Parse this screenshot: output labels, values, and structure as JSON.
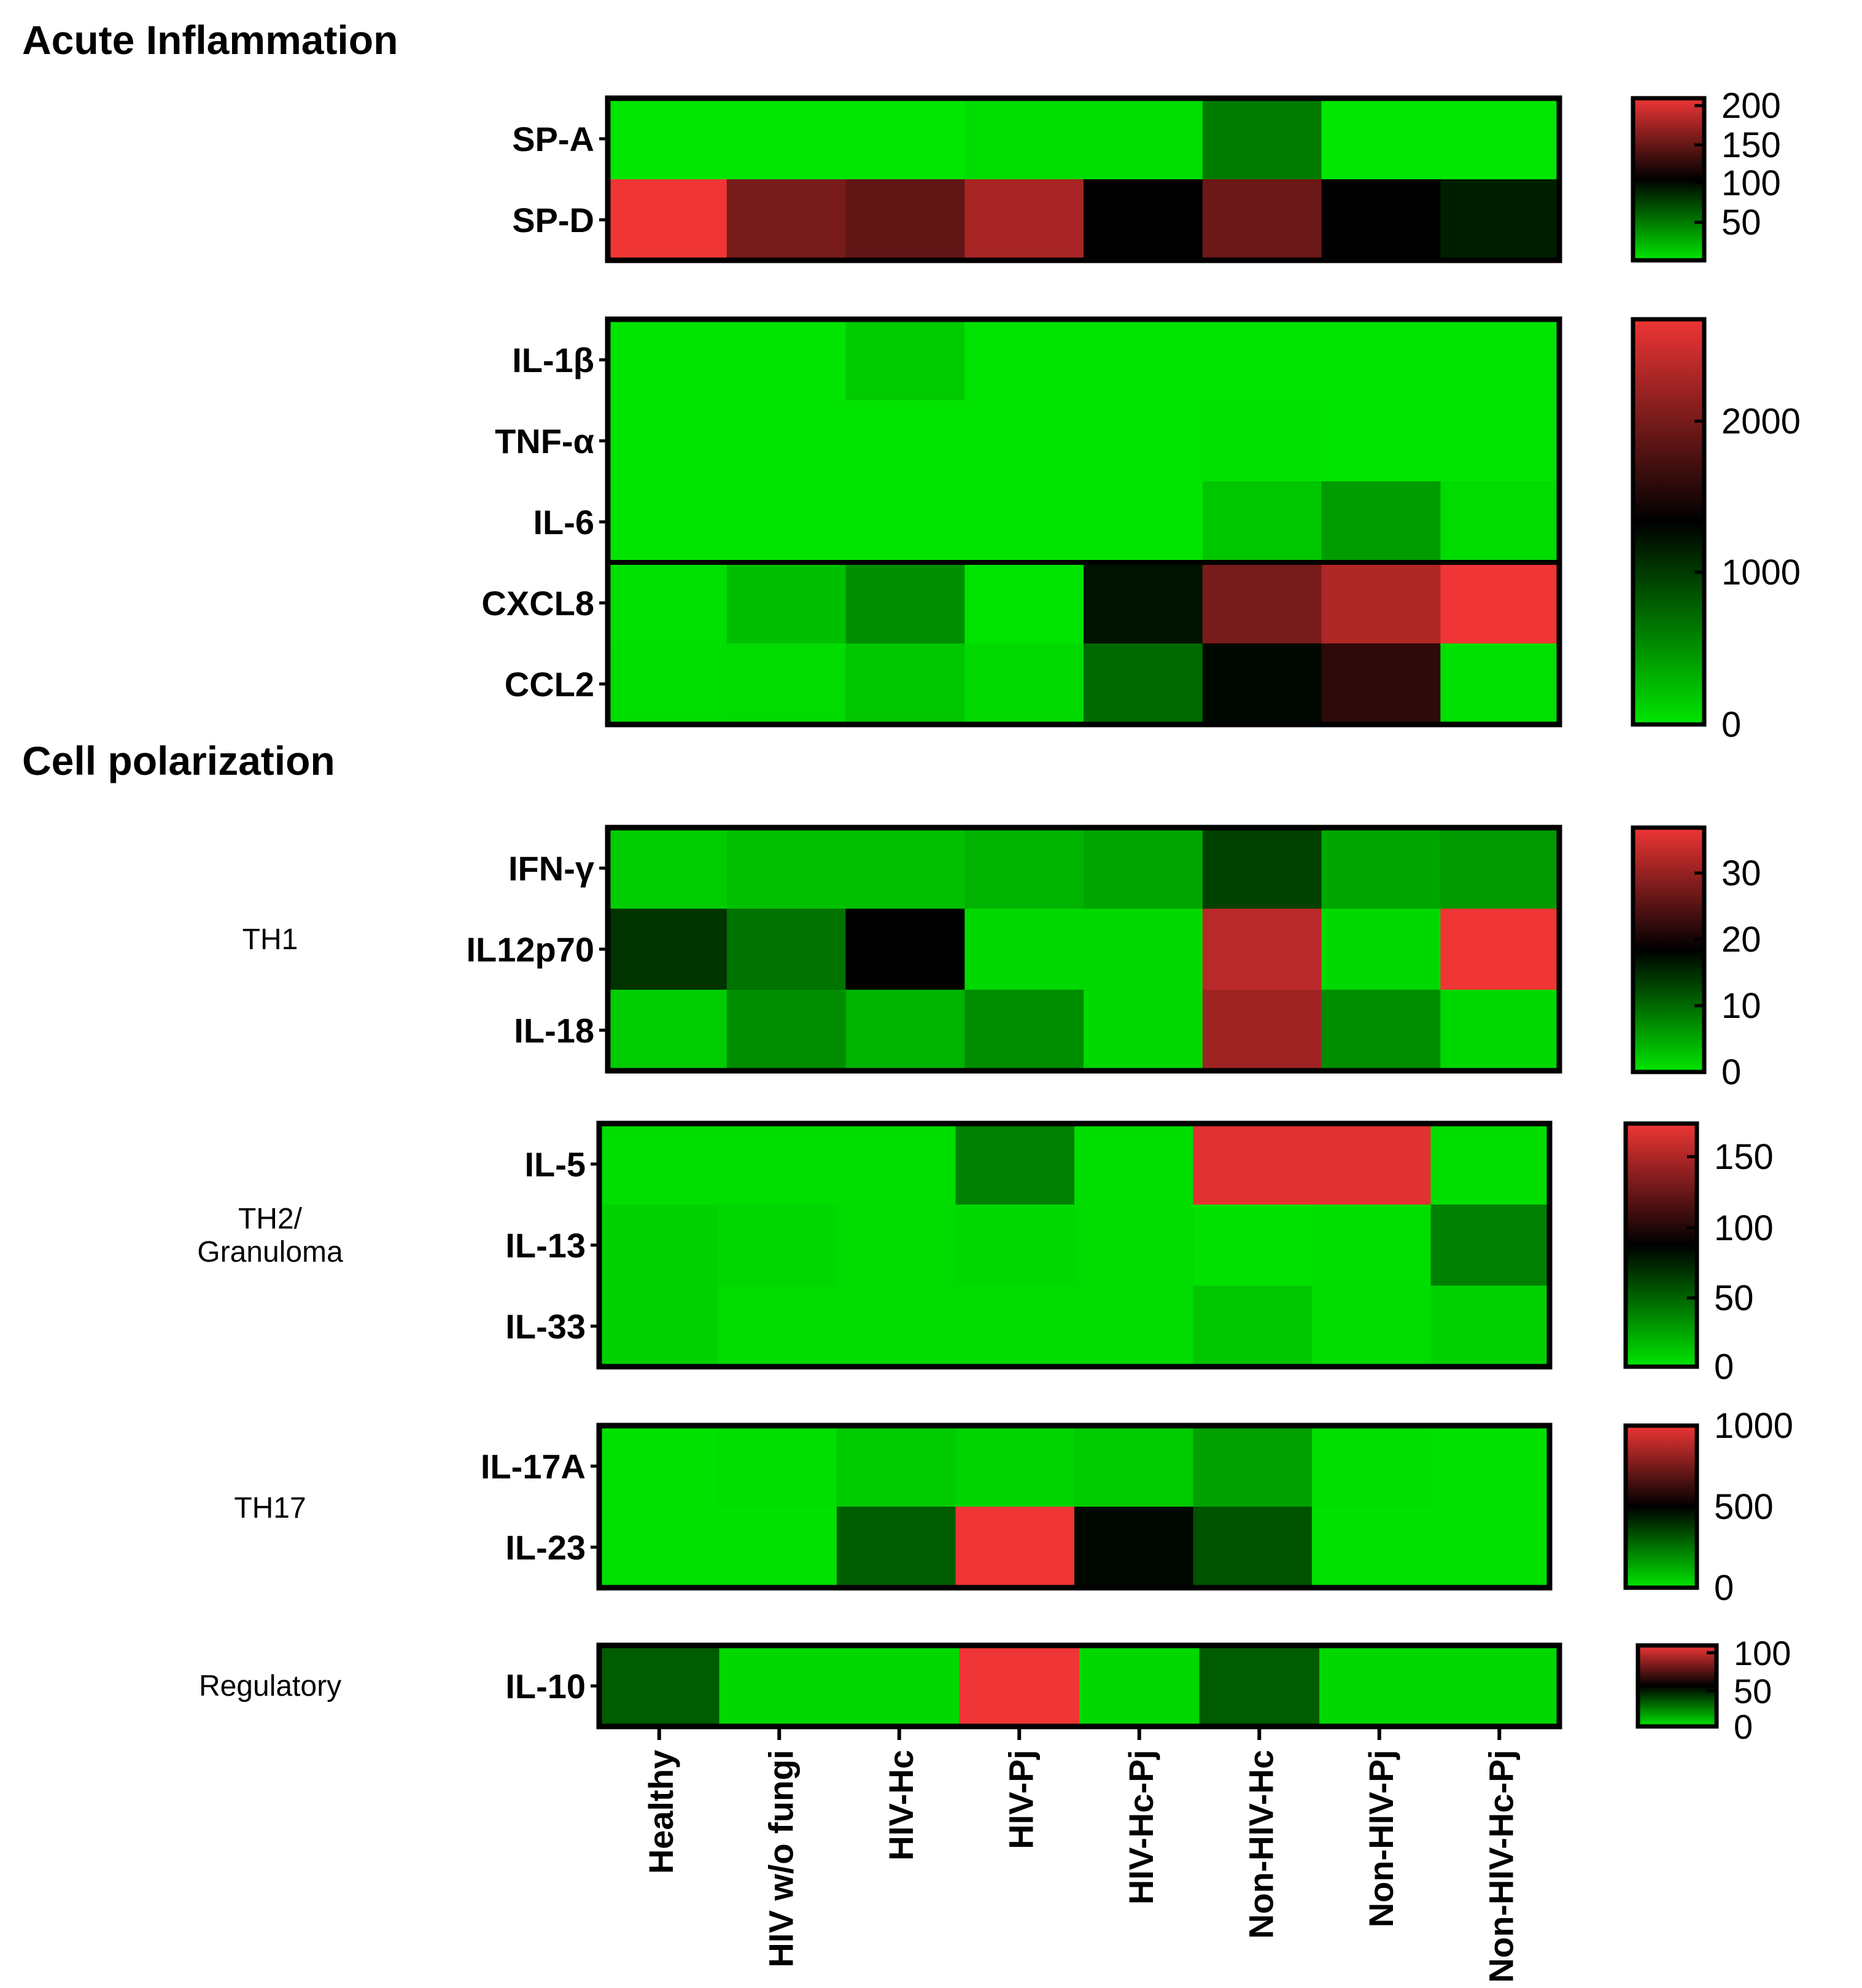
{
  "chart_data": {
    "type": "heatmap",
    "colors": {
      "low": "#00e600",
      "mid": "#000000",
      "high": "#ef3535"
    },
    "groups": [
      "Healthy",
      "HIV w/o fungi",
      "HIV-Hc",
      "HIV-Pj",
      "HIV-Hc-Pj",
      "Non-HIV-Hc",
      "Non-HIV-Pj",
      "Non-HIV-Hc-Pj"
    ],
    "sections": [
      {
        "title": "Acute Inflammation"
      },
      {
        "title": "Cell polarization"
      }
    ],
    "panels": [
      {
        "id": "surfactant",
        "category": "",
        "rows": [
          "SP-A",
          "SP-D"
        ],
        "values": [
          [
            25,
            25,
            25,
            28,
            28,
            60,
            25,
            25
          ],
          [
            200,
            150,
            140,
            170,
            100,
            145,
            100,
            90
          ]
        ],
        "scale": {
          "min": 25,
          "mid": 100,
          "max": 200,
          "ticks": [
            "200",
            "150",
            "100",
            "50"
          ]
        }
      },
      {
        "id": "cytokines-acute",
        "category": "",
        "rows": [
          "IL-1β",
          "TNF-α",
          "IL-6",
          "CXCL8",
          "CCL2"
        ],
        "values": [
          [
            10,
            10,
            150,
            15,
            15,
            15,
            15,
            10
          ],
          [
            10,
            10,
            10,
            15,
            15,
            30,
            15,
            15
          ],
          [
            10,
            10,
            10,
            10,
            10,
            180,
            420,
            60
          ],
          [
            40,
            220,
            500,
            20,
            1200,
            1950,
            2250,
            2600
          ],
          [
            50,
            60,
            180,
            70,
            700,
            1250,
            1550,
            40
          ]
        ],
        "scale": {
          "min": 0,
          "mid": 1300,
          "max": 2600,
          "ticks": [
            "2000",
            "1000",
            "0"
          ]
        }
      },
      {
        "id": "th1",
        "category": "TH1",
        "rows": [
          "IFN-γ",
          "IL12p70",
          "IL-18"
        ],
        "values": [
          [
            2,
            3,
            3,
            4,
            5,
            13,
            5,
            6
          ],
          [
            14,
            9,
            18,
            1,
            1,
            32,
            1,
            36
          ],
          [
            2,
            7,
            4,
            7,
            1,
            30,
            7,
            1
          ]
        ],
        "scale": {
          "min": 0,
          "mid": 18,
          "max": 36,
          "ticks": [
            "30",
            "20",
            "10",
            "0"
          ]
        }
      },
      {
        "id": "th2",
        "category": "TH2/\nGranuloma",
        "rows": [
          "IL-5",
          "IL-13",
          "IL-33"
        ],
        "values": [
          [
            3,
            3,
            3,
            40,
            3,
            170,
            170,
            3
          ],
          [
            8,
            6,
            4,
            5,
            4,
            2,
            3,
            40
          ],
          [
            8,
            4,
            4,
            4,
            4,
            12,
            4,
            8
          ]
        ],
        "scale": {
          "min": 0,
          "mid": 90,
          "max": 175,
          "ticks": [
            "150",
            "100",
            "50",
            "0"
          ]
        }
      },
      {
        "id": "th17",
        "category": "TH17",
        "rows": [
          "IL-17A",
          "IL-23"
        ],
        "values": [
          [
            10,
            20,
            60,
            40,
            60,
            150,
            20,
            10
          ],
          [
            10,
            10,
            300,
            1000,
            480,
            320,
            10,
            10
          ]
        ],
        "scale": {
          "min": 0,
          "mid": 500,
          "max": 1000,
          "ticks": [
            "1000",
            "500",
            "0"
          ]
        }
      },
      {
        "id": "regulatory",
        "category": "Regulatory",
        "rows": [
          "IL-10"
        ],
        "values": [
          [
            30,
            3,
            3,
            100,
            3,
            30,
            3,
            3
          ]
        ],
        "scale": {
          "min": 0,
          "mid": 50,
          "max": 100,
          "ticks": [
            "100",
            "50",
            "0"
          ]
        }
      }
    ]
  }
}
